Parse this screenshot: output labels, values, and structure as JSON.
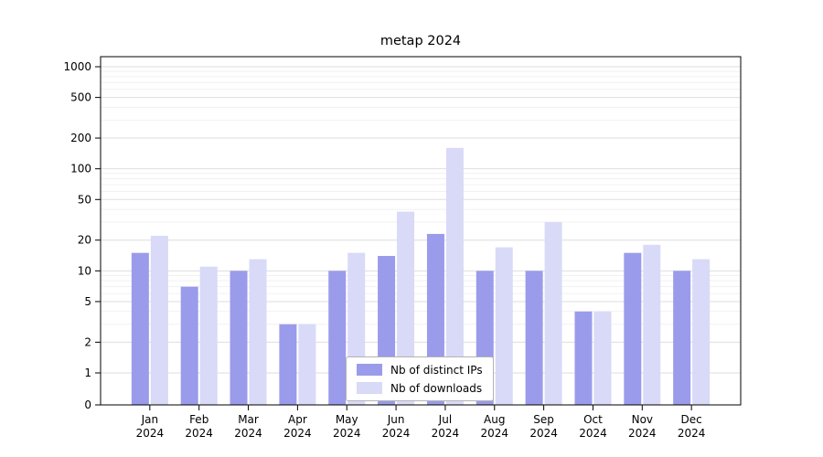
{
  "chart_data": {
    "type": "bar",
    "title": "metap 2024",
    "categories": [
      "Jan",
      "Feb",
      "Mar",
      "Apr",
      "May",
      "Jun",
      "Jul",
      "Aug",
      "Sep",
      "Oct",
      "Nov",
      "Dec"
    ],
    "xtick_year": "2024",
    "series": [
      {
        "name": "Nb of distinct IPs",
        "color": "#9b9beb",
        "values": [
          15,
          7,
          10,
          3,
          10,
          14,
          23,
          10,
          10,
          4,
          15,
          10
        ]
      },
      {
        "name": "Nb of downloads",
        "color": "#d9d9f8",
        "values": [
          22,
          11,
          13,
          3,
          15,
          38,
          160,
          17,
          30,
          4,
          18,
          13
        ]
      }
    ],
    "yscale": "symlog",
    "yticks": [
      0,
      1,
      2,
      5,
      10,
      20,
      50,
      100,
      200,
      500,
      1000
    ],
    "ytick_labels": [
      "0",
      "1",
      "2",
      "5",
      "10",
      "20",
      "50",
      "100",
      "200",
      "500",
      "1000"
    ],
    "ylim": [
      0,
      1250
    ],
    "grid": true,
    "legend_position": "lower center",
    "background": "#ffffff"
  }
}
